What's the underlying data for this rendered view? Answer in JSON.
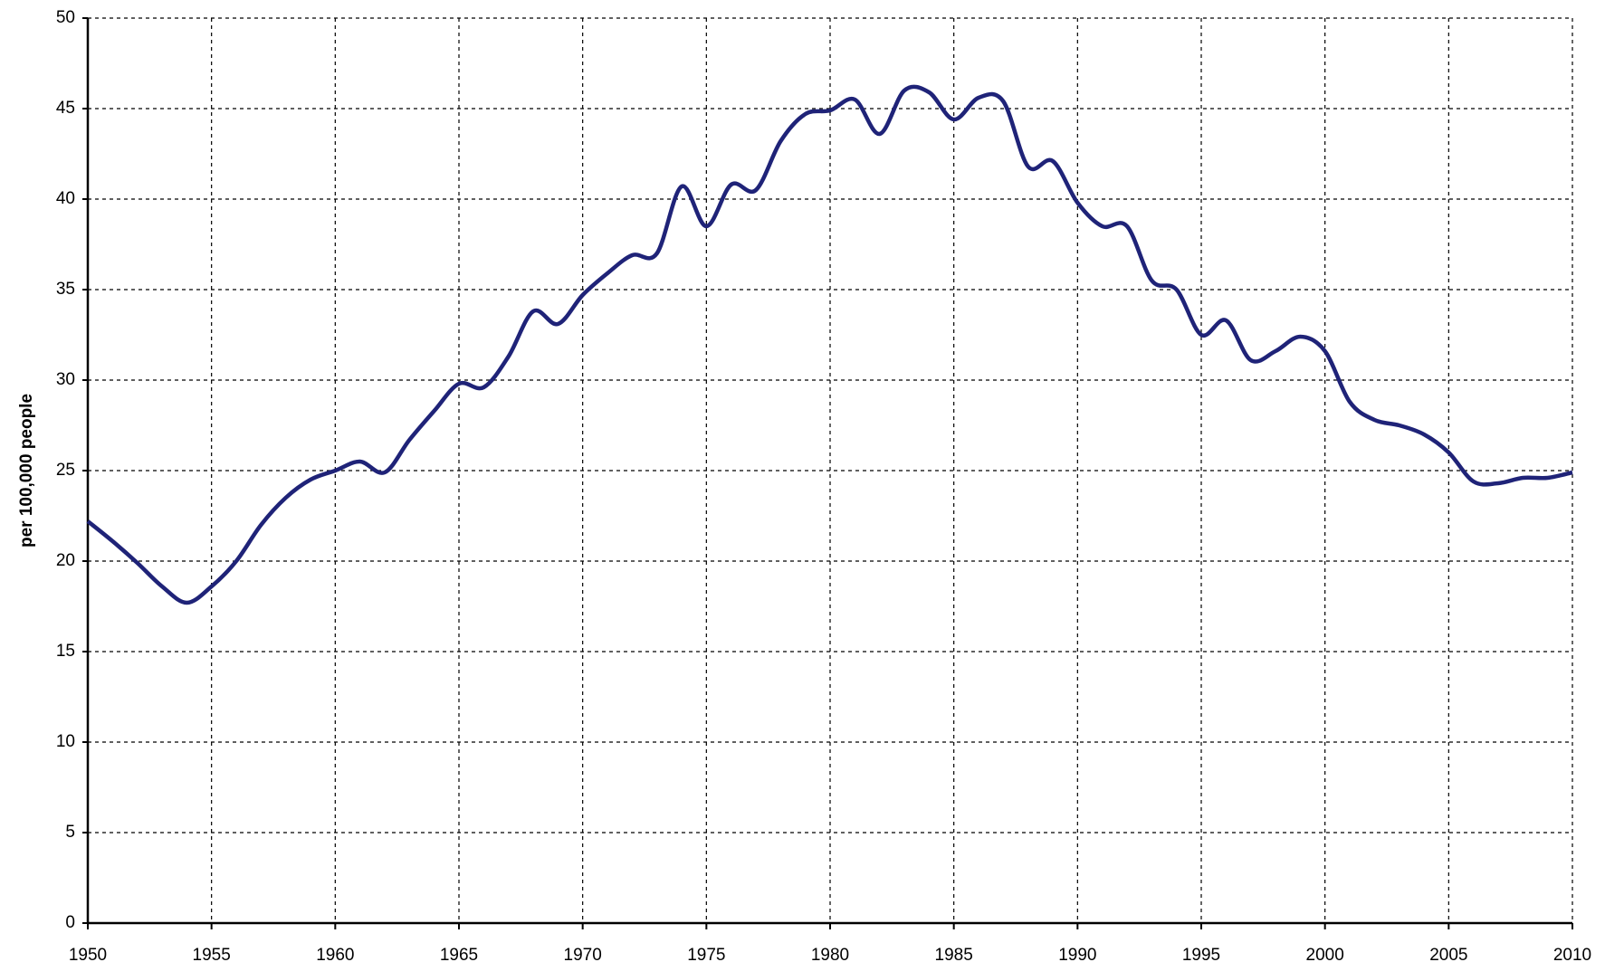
{
  "chart_data": {
    "type": "line",
    "y_label": "per 100,000 people",
    "x": [
      1950,
      1951,
      1952,
      1953,
      1954,
      1955,
      1956,
      1957,
      1958,
      1959,
      1960,
      1961,
      1962,
      1963,
      1964,
      1965,
      1966,
      1967,
      1968,
      1969,
      1970,
      1971,
      1972,
      1973,
      1974,
      1975,
      1976,
      1977,
      1978,
      1979,
      1980,
      1981,
      1982,
      1983,
      1984,
      1985,
      1986,
      1987,
      1988,
      1989,
      1990,
      1991,
      1992,
      1993,
      1994,
      1995,
      1996,
      1997,
      1998,
      1999,
      2000,
      2001,
      2002,
      2003,
      2004,
      2005,
      2006,
      2007,
      2008,
      2009,
      2010
    ],
    "series": [
      {
        "color": "#1f2378",
        "values": [
          22.2,
          21.1,
          19.9,
          18.6,
          17.7,
          18.6,
          20.0,
          22.0,
          23.5,
          24.5,
          25.0,
          25.5,
          24.9,
          26.7,
          28.3,
          29.8,
          29.6,
          31.3,
          33.8,
          33.1,
          34.7,
          35.9,
          36.9,
          37.0,
          40.7,
          38.5,
          40.8,
          40.5,
          43.2,
          44.7,
          44.9,
          45.5,
          43.6,
          46.0,
          45.9,
          44.4,
          45.6,
          45.4,
          41.8,
          42.1,
          39.8,
          38.5,
          38.5,
          35.5,
          35.0,
          32.5,
          33.3,
          31.1,
          31.6,
          32.4,
          31.6,
          28.8,
          27.8,
          27.5,
          27.0,
          26.0,
          24.4,
          24.3,
          24.6,
          24.6,
          24.9
        ]
      }
    ],
    "xlim": [
      1950,
      2010
    ],
    "xticks": [
      1950,
      1955,
      1960,
      1965,
      1970,
      1975,
      1980,
      1985,
      1990,
      1995,
      2000,
      2005,
      2010
    ],
    "ylim": [
      0,
      50
    ],
    "yticks": [
      0,
      5,
      10,
      15,
      20,
      25,
      30,
      35,
      40,
      45,
      50
    ],
    "grid": true
  }
}
